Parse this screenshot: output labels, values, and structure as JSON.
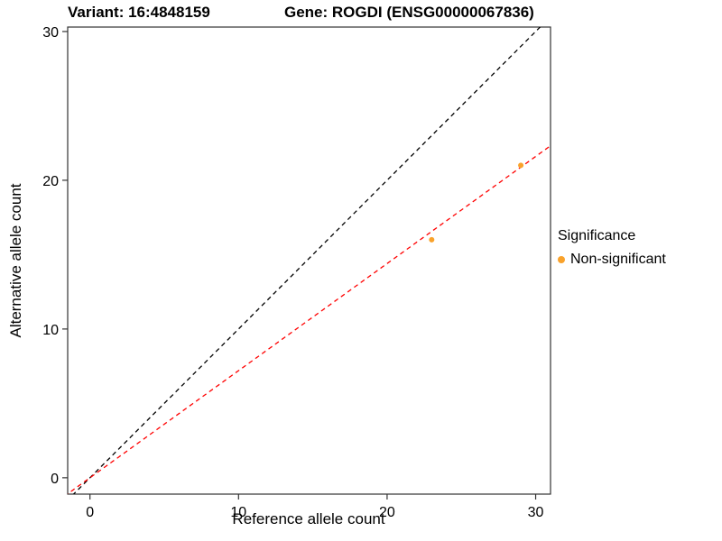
{
  "chart_data": {
    "type": "scatter",
    "title_left": "Variant: 16:4848159",
    "title_right": "Gene: ROGDI (ENSG00000067836)",
    "xlabel": "Reference allele count",
    "ylabel": "Alternative allele count",
    "xlim": [
      -1.5,
      31
    ],
    "ylim": [
      -1.1,
      30.3
    ],
    "xticks": [
      0,
      10,
      20,
      30
    ],
    "yticks": [
      0,
      10,
      20,
      30
    ],
    "grid": false,
    "legend_position": "right",
    "panel_border_color": "#333333",
    "points": [
      {
        "x": 23,
        "y": 16,
        "series": "Non-significant"
      },
      {
        "x": 29,
        "y": 21,
        "series": "Non-significant"
      }
    ],
    "point_color": "#F9A22B",
    "lines": [
      {
        "name": "identity-line",
        "slope": 1,
        "intercept": 0,
        "color": "#000000",
        "style": "dashed"
      },
      {
        "name": "expected-ratio-line",
        "slope": 0.72,
        "intercept": 0,
        "color": "#FF0000",
        "style": "dashed"
      }
    ],
    "legend": {
      "title": "Significance",
      "entries": [
        {
          "label": "Non-significant",
          "color": "#F9A22B"
        }
      ]
    }
  }
}
